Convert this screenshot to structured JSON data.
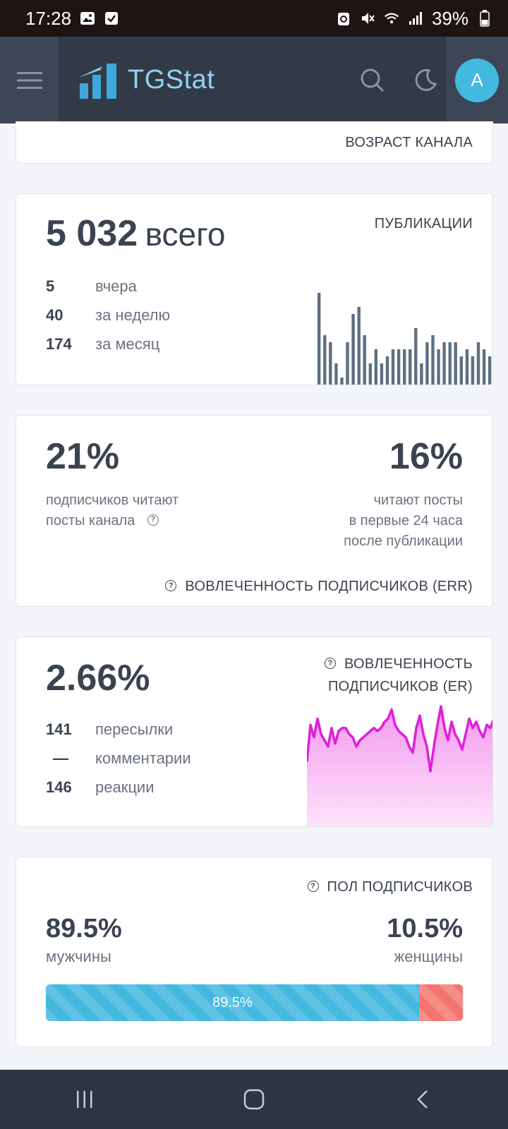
{
  "statusbar": {
    "time": "17:28",
    "battery": "39%"
  },
  "header": {
    "logo_text": "TGStat",
    "avatar_letter": "A"
  },
  "age_card": {
    "title": "ВОЗРАСТ КАНАЛА"
  },
  "publications": {
    "title": "ПУБЛИКАЦИИ",
    "total": "5 032",
    "total_suffix": "всего",
    "rows": [
      {
        "value": "5",
        "label": "вчера"
      },
      {
        "value": "40",
        "label": "за неделю"
      },
      {
        "value": "174",
        "label": "за месяц"
      }
    ],
    "bar_values": [
      13,
      7,
      6,
      3,
      1,
      6,
      10,
      11,
      7,
      3,
      5,
      3,
      4,
      5,
      5,
      5,
      5,
      8,
      3,
      6,
      7,
      5,
      6,
      6,
      6,
      4,
      5,
      4,
      6,
      5,
      4
    ]
  },
  "err": {
    "title": "ВОВЛЕЧЕННОСТЬ ПОДПИСЧИКОВ (ERR)",
    "left_value": "21%",
    "left_text_1": "подписчиков читают",
    "left_text_2": "посты канала",
    "right_value": "16%",
    "right_text_1": "читают посты",
    "right_text_2": "в первые 24 часа",
    "right_text_3": "после публикации"
  },
  "er": {
    "title_1": "ВОВЛЕЧЕННОСТЬ",
    "title_2": "ПОДПИСЧИКОВ (ER)",
    "value": "2.66%",
    "rows": [
      {
        "value": "141",
        "label": "пересылки"
      },
      {
        "value": "—",
        "label": "комментарии"
      },
      {
        "value": "146",
        "label": "реакции"
      }
    ],
    "line_values": [
      1.5,
      2.7,
      2.3,
      2.9,
      2.4,
      2.2,
      2.0,
      2.6,
      2.1,
      2.5,
      2.6,
      2.6,
      2.4,
      2.3,
      2.0,
      2.2,
      2.3,
      2.4,
      2.5,
      2.6,
      2.5,
      2.6,
      2.8,
      2.9,
      3.2,
      2.7,
      2.5,
      2.4,
      2.3,
      2.0,
      1.8,
      2.6,
      3.0,
      2.4,
      2.0,
      1.2,
      2.0,
      2.7,
      3.3,
      2.6,
      2.2,
      2.8,
      2.4,
      2.2,
      1.9,
      2.4,
      2.9,
      2.6,
      2.8,
      2.5,
      2.3,
      2.7,
      2.6,
      2.9
    ]
  },
  "gender": {
    "title": "ПОЛ ПОДПИСЧИКОВ",
    "male_value": "89.5%",
    "male_label": "мужчины",
    "female_value": "10.5%",
    "female_label": "женщины",
    "bar_label": "89.5%",
    "male_share": 0.895,
    "male_color": "#44b9df",
    "female_color": "#f4746e"
  }
}
